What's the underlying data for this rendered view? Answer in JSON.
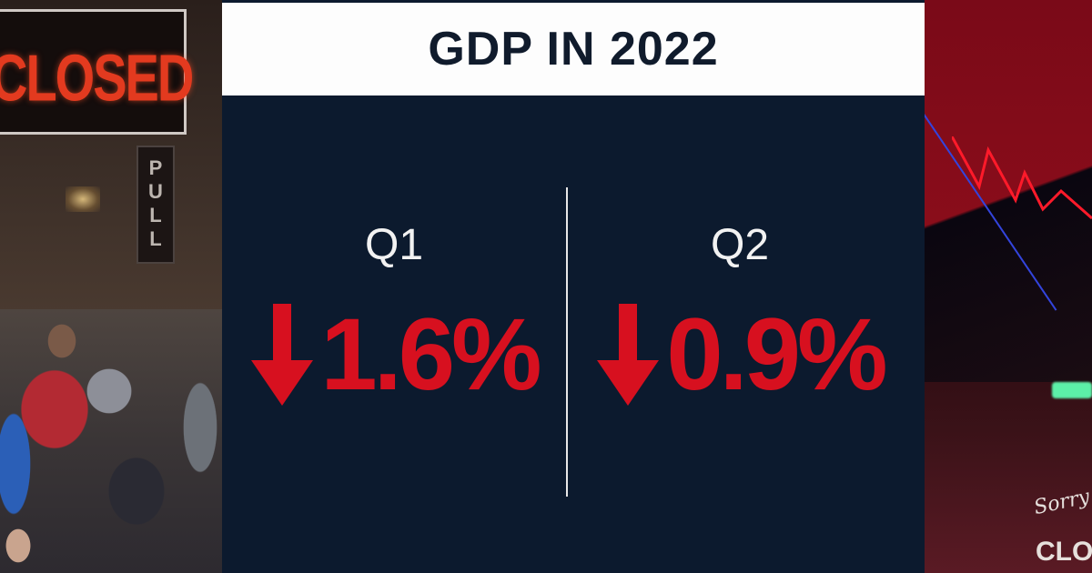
{
  "background": {
    "left_photo": {
      "sign_text": "CLOSED",
      "door_sign_text": "PULL"
    },
    "right_photo": {
      "sign_script_text": "Sorry",
      "sign_partial_text": "CLO"
    }
  },
  "card": {
    "title": "GDP IN 2022",
    "quarters": [
      {
        "label": "Q1",
        "direction": "down",
        "value": "1.6%"
      },
      {
        "label": "Q2",
        "direction": "down",
        "value": "0.9%"
      }
    ]
  },
  "colors": {
    "card_background": "#0c1a2e",
    "title_background": "#fdfdfd",
    "title_text": "#101b2c",
    "decline_red": "#d7101f",
    "label_white": "#f2f2f2"
  }
}
